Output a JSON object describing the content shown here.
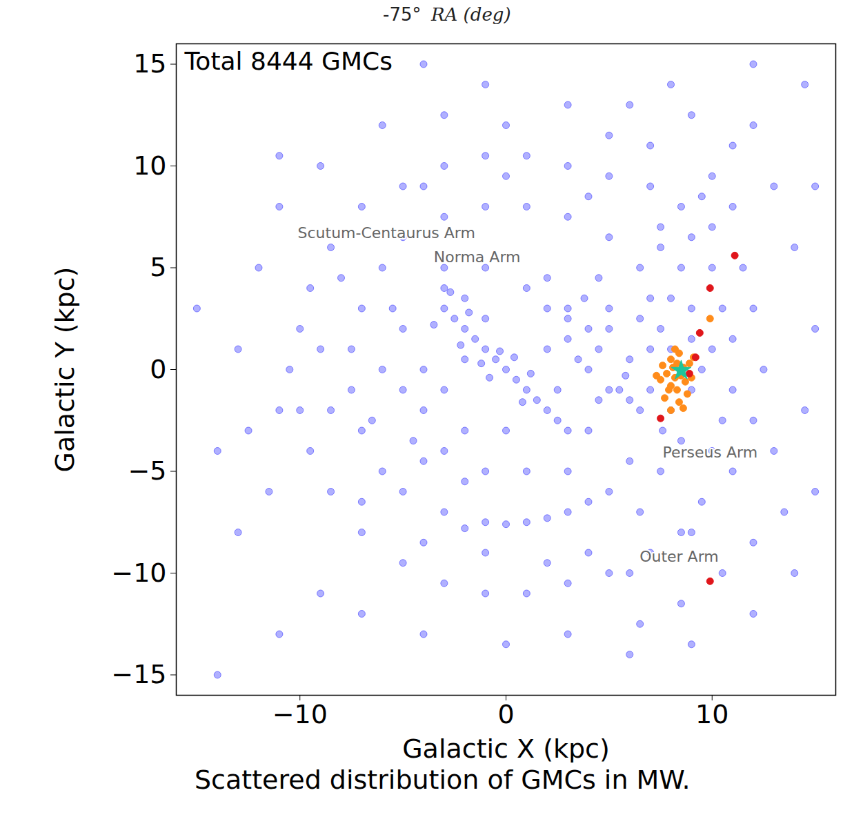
{
  "header_fragment": {
    "texts": [
      "-75°",
      "RA (deg)"
    ]
  },
  "chart_data": {
    "type": "scatter",
    "title": "Total 8444 GMCs",
    "x_label": "Galactic X (kpc)",
    "y_label": "Galactic Y (kpc)",
    "caption": "Scattered distribution of GMCs in MW.",
    "xlim": [
      -16,
      16
    ],
    "ylim": [
      -16,
      16
    ],
    "xticks": [
      -10,
      0,
      10
    ],
    "yticks": [
      -15,
      -10,
      -5,
      0,
      5,
      10,
      15
    ],
    "grid": false,
    "series": [
      {
        "color": "#3a3aff",
        "marker": "o",
        "values": [
          [
            -0.5,
            0.5
          ],
          [
            0,
            0
          ],
          [
            -1,
            1
          ],
          [
            -1.5,
            1.5
          ],
          [
            -2,
            2
          ],
          [
            -2.5,
            2.5
          ],
          [
            -3,
            3
          ],
          [
            -3,
            4
          ],
          [
            -2,
            3.5
          ],
          [
            -1,
            2.5
          ],
          [
            0.5,
            -0.5
          ],
          [
            1,
            -1
          ],
          [
            1.5,
            -1.5
          ],
          [
            2,
            -2
          ],
          [
            2.5,
            -2.5
          ],
          [
            3,
            -3
          ],
          [
            -0.3,
            0.9
          ],
          [
            -1.2,
            0.3
          ],
          [
            0.4,
            0.6
          ],
          [
            -2.2,
            1.2
          ],
          [
            -1.8,
            2.8
          ],
          [
            -3.5,
            2.2
          ],
          [
            -2.7,
            3.8
          ],
          [
            -0.8,
            -0.4
          ],
          [
            1.2,
            -0.2
          ],
          [
            0.8,
            -1.6
          ],
          [
            -4,
            0
          ],
          [
            -4,
            -2
          ],
          [
            -3,
            -4
          ],
          [
            -1,
            -5
          ],
          [
            1,
            -5
          ],
          [
            3,
            -5
          ],
          [
            4,
            -3
          ],
          [
            5,
            -1
          ],
          [
            4,
            2
          ],
          [
            3,
            3
          ],
          [
            1,
            4
          ],
          [
            -1,
            5
          ],
          [
            -3,
            5
          ],
          [
            -5,
            2
          ],
          [
            -5,
            -1
          ],
          [
            -4.5,
            -3.5
          ],
          [
            -2,
            -5.5
          ],
          [
            2,
            1
          ],
          [
            3,
            1.5
          ],
          [
            3.5,
            0.5
          ],
          [
            4,
            0
          ],
          [
            4.5,
            1
          ],
          [
            5,
            2
          ],
          [
            5.5,
            -1
          ],
          [
            6,
            -1.5
          ],
          [
            6,
            0.5
          ],
          [
            5,
            3
          ],
          [
            6.5,
            2.5
          ],
          [
            3,
            2.5
          ],
          [
            2.5,
            -1
          ],
          [
            4.5,
            -1.5
          ],
          [
            6.5,
            -2
          ],
          [
            5.8,
            -0.3
          ],
          [
            3.8,
            3.5
          ],
          [
            2,
            3
          ],
          [
            7,
            1
          ],
          [
            7,
            -1
          ],
          [
            8,
            1
          ],
          [
            7.5,
            2
          ],
          [
            9,
            1.5
          ],
          [
            9,
            -1
          ],
          [
            8,
            -2
          ],
          [
            7.6,
            -3
          ],
          [
            8.5,
            -3.5
          ],
          [
            9.5,
            0
          ],
          [
            10,
            1
          ],
          [
            9,
            3
          ],
          [
            8,
            3.5
          ],
          [
            7,
            3.5
          ],
          [
            8.5,
            5
          ],
          [
            7.5,
            6
          ],
          [
            9,
            6.5
          ],
          [
            10,
            5
          ],
          [
            10.5,
            3
          ],
          [
            11,
            1.5
          ],
          [
            11,
            -1
          ],
          [
            10.5,
            -2.5
          ],
          [
            -6,
            5
          ],
          [
            -5,
            6.5
          ],
          [
            -3,
            7.5
          ],
          [
            -1,
            8
          ],
          [
            1,
            8
          ],
          [
            3,
            7.5
          ],
          [
            5,
            6.5
          ],
          [
            6.5,
            5
          ],
          [
            -7,
            3
          ],
          [
            -7.5,
            1
          ],
          [
            -7.5,
            -1
          ],
          [
            -7,
            -3
          ],
          [
            -6,
            -5
          ],
          [
            -5,
            -6
          ],
          [
            -3,
            -7
          ],
          [
            -1,
            -7.5
          ],
          [
            1,
            -7.5
          ],
          [
            3,
            -7
          ],
          [
            5,
            -6
          ],
          [
            6,
            -4.5
          ],
          [
            4,
            -6.5
          ],
          [
            -2,
            -7.8
          ],
          [
            0,
            -7.6
          ],
          [
            2,
            -7.3
          ],
          [
            -10,
            2
          ],
          [
            -10.5,
            0
          ],
          [
            -10,
            -2
          ],
          [
            -9.5,
            -4
          ],
          [
            -8.5,
            -6
          ],
          [
            -7,
            -8
          ],
          [
            -5,
            -9.5
          ],
          [
            -3,
            -10.5
          ],
          [
            -1,
            -11
          ],
          [
            1,
            -11
          ],
          [
            3,
            -10.5
          ],
          [
            5,
            -10
          ],
          [
            7,
            -9
          ],
          [
            8.5,
            -8
          ],
          [
            9.5,
            -6.5
          ],
          [
            11,
            -5
          ],
          [
            -9.5,
            4
          ],
          [
            -8.5,
            6
          ],
          [
            -7,
            8
          ],
          [
            -5,
            9
          ],
          [
            -3,
            10
          ],
          [
            -1,
            10.5
          ],
          [
            1,
            10.5
          ],
          [
            3,
            10
          ],
          [
            5,
            9.5
          ],
          [
            7,
            9
          ],
          [
            8.5,
            8
          ],
          [
            10,
            7
          ],
          [
            11.5,
            5
          ],
          [
            12,
            3
          ],
          [
            12.5,
            0
          ],
          [
            12,
            -2.5
          ],
          [
            13,
            -4
          ],
          [
            13.5,
            -7
          ],
          [
            12,
            -8.5
          ],
          [
            10.5,
            -10
          ],
          [
            8.5,
            -11.5
          ],
          [
            6.5,
            -12.5
          ],
          [
            -13,
            -8
          ],
          [
            -14,
            -15
          ],
          [
            -11,
            -13
          ],
          [
            -9,
            -11
          ],
          [
            -7,
            -12
          ],
          [
            -4,
            -13
          ],
          [
            0,
            -13.5
          ],
          [
            3,
            -13
          ],
          [
            6,
            -14
          ],
          [
            9,
            -13.5
          ],
          [
            12,
            -12
          ],
          [
            14,
            -10
          ],
          [
            15,
            -6
          ],
          [
            14.5,
            -2
          ],
          [
            15,
            2
          ],
          [
            14,
            6
          ],
          [
            13,
            9
          ],
          [
            11,
            11
          ],
          [
            9,
            12.5
          ],
          [
            6,
            13
          ],
          [
            3,
            13
          ],
          [
            0,
            12
          ],
          [
            -3,
            12.5
          ],
          [
            -6,
            12
          ],
          [
            -9,
            10
          ],
          [
            -11,
            8
          ],
          [
            -12,
            5
          ],
          [
            -13,
            1
          ],
          [
            -12.5,
            -3
          ],
          [
            -11.5,
            -6
          ],
          [
            -11,
            -2
          ],
          [
            -14,
            -4
          ],
          [
            -15,
            3
          ],
          [
            -11,
            10.5
          ],
          [
            8,
            14
          ],
          [
            12,
            15
          ],
          [
            14.5,
            14
          ],
          [
            -4,
            15
          ],
          [
            -1,
            14
          ],
          [
            5,
            11.5
          ],
          [
            7,
            11
          ],
          [
            10,
            9.5
          ],
          [
            12,
            12
          ],
          [
            15,
            9
          ],
          [
            -6,
            0
          ],
          [
            -5.5,
            3
          ],
          [
            -6.5,
            -2.5
          ],
          [
            -4,
            -4.5
          ],
          [
            0,
            -3
          ],
          [
            -2,
            -3
          ],
          [
            2,
            4.5
          ],
          [
            4.5,
            4.5
          ],
          [
            -3,
            -1
          ],
          [
            -2,
            0.5
          ],
          [
            7.5,
            -5
          ],
          [
            9,
            -8
          ],
          [
            6.5,
            -7
          ],
          [
            10,
            -4
          ],
          [
            6,
            -10
          ],
          [
            4,
            -9
          ],
          [
            2,
            -9.5
          ],
          [
            -1,
            -9
          ],
          [
            -4,
            -8.5
          ],
          [
            -7,
            -6.5
          ],
          [
            -8.5,
            -2
          ],
          [
            -9,
            1
          ],
          [
            -8,
            4.5
          ],
          [
            -4,
            9
          ],
          [
            0,
            9.5
          ],
          [
            4,
            8.5
          ],
          [
            7.5,
            7
          ],
          [
            9.5,
            8.5
          ],
          [
            11,
            8
          ]
        ]
      },
      {
        "color": "#ff8c1a",
        "marker": "o",
        "values": [
          [
            8.0,
            0.5
          ],
          [
            8.3,
            0.3
          ],
          [
            8.6,
            0.1
          ],
          [
            7.8,
            -0.2
          ],
          [
            8.2,
            -0.4
          ],
          [
            8.7,
            -0.6
          ],
          [
            8.4,
            0.8
          ],
          [
            8.0,
            -0.8
          ],
          [
            7.6,
            0.2
          ],
          [
            8.9,
            0.3
          ],
          [
            8.5,
            -0.3
          ],
          [
            8.1,
            0.1
          ],
          [
            7.9,
            -1.0
          ],
          [
            8.4,
            -1.6
          ],
          [
            8.6,
            -1.9
          ],
          [
            7.7,
            -1.4
          ],
          [
            9.0,
            -0.4
          ],
          [
            8.2,
            1.0
          ],
          [
            7.5,
            -0.5
          ],
          [
            9.1,
            0.6
          ],
          [
            8.8,
            -1.2
          ],
          [
            8.3,
            -1.0
          ],
          [
            9.9,
            2.5
          ],
          [
            7.3,
            -0.3
          ],
          [
            8.0,
            -2.0
          ]
        ]
      },
      {
        "color": "#e0161b",
        "marker": "o",
        "values": [
          [
            11.1,
            5.6
          ],
          [
            9.9,
            4.0
          ],
          [
            9.4,
            1.8
          ],
          [
            9.2,
            0.6
          ],
          [
            7.5,
            -2.4
          ],
          [
            9.9,
            -10.4
          ],
          [
            8.9,
            -0.2
          ]
        ]
      },
      {
        "color": "#1fc49a",
        "marker": "star",
        "values": [
          [
            8.5,
            -0.05
          ]
        ]
      }
    ],
    "annotations": [
      {
        "text": "Scutum-Centaurus Arm",
        "x": -5.8,
        "y": 6.7
      },
      {
        "text": "Norma Arm",
        "x": -1.4,
        "y": 5.5
      },
      {
        "text": "Perseus Arm",
        "x": 9.9,
        "y": -4.1
      },
      {
        "text": "Outer Arm",
        "x": 8.4,
        "y": -9.2
      }
    ]
  }
}
